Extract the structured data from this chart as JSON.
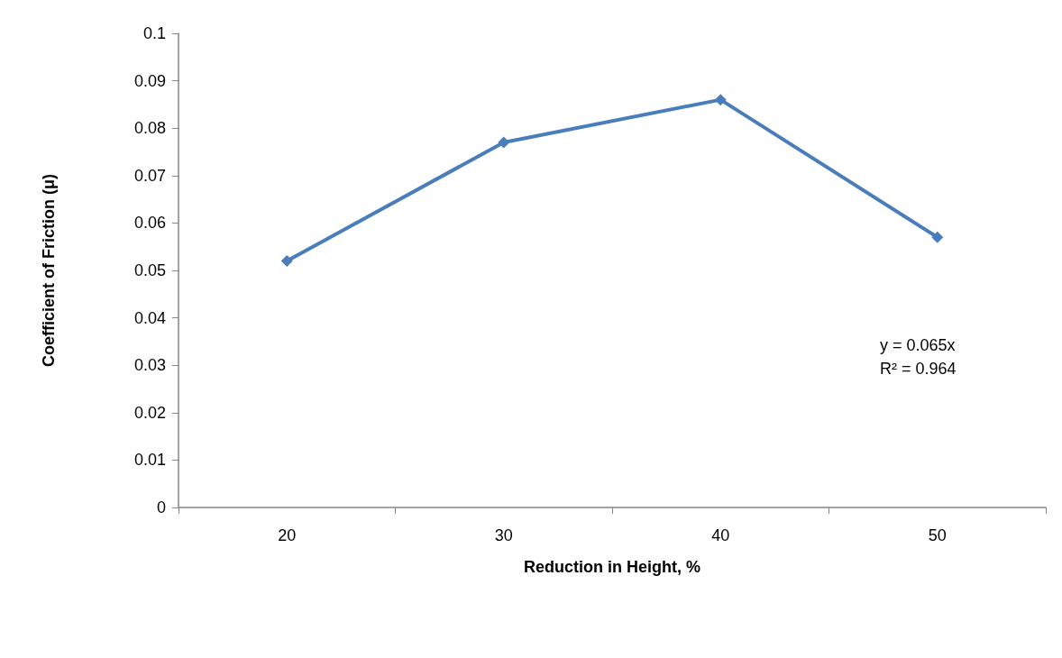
{
  "chart_data": {
    "type": "line",
    "xlabel": "Reduction in Height, %",
    "ylabel": "Coefficient of Friction (μ)",
    "categories": [
      "20",
      "30",
      "40",
      "50"
    ],
    "series": [
      {
        "color": "#4a7ebb",
        "values": [
          0.052,
          0.077,
          0.086,
          0.057
        ]
      }
    ],
    "ylim": [
      0,
      0.1
    ],
    "yticks": [
      0,
      0.01,
      0.02,
      0.03,
      0.04,
      0.05,
      0.06,
      0.07,
      0.08,
      0.09,
      0.1
    ],
    "annotations": [
      "y = 0.065x",
      "R² = 0.964"
    ],
    "grid": false,
    "marker": "diamond",
    "line_style": "solid"
  }
}
